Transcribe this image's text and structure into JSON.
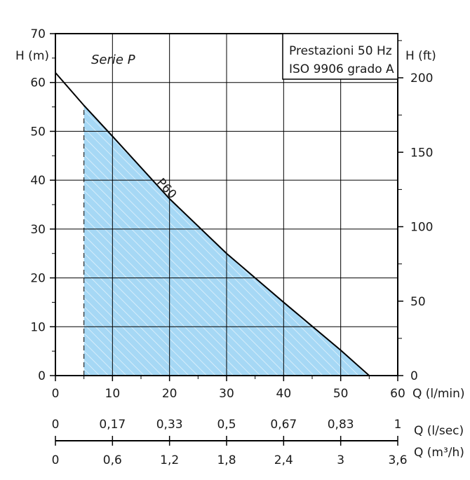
{
  "chart_data": {
    "type": "area",
    "title": "",
    "series_label": "Serie P",
    "note_lines": [
      "Prestazioni 50 Hz",
      "ISO 9906 grado A"
    ],
    "left_axis_label": "H (m)",
    "right_axis_label": "H (ft)",
    "x_label": "Q (l/min)",
    "x_label_lsec": "Q (l/sec)",
    "x_label_m3h": "Q (m³/h)",
    "xlim": [
      0,
      60
    ],
    "ylim": [
      0,
      70
    ],
    "ft_lim": [
      0,
      229.66
    ],
    "x_ticks": [
      "0",
      "10",
      "20",
      "30",
      "40",
      "50",
      "60"
    ],
    "y_ticks": [
      "0",
      "10",
      "20",
      "30",
      "40",
      "50",
      "60",
      "70"
    ],
    "ft_ticks": [
      {
        "value": 0,
        "label": "0"
      },
      {
        "value": 50,
        "label": "50"
      },
      {
        "value": 100,
        "label": "100"
      },
      {
        "value": 150,
        "label": "150"
      },
      {
        "value": 200,
        "label": "200"
      }
    ],
    "lsec_ticks": [
      {
        "q": 0,
        "label": "0"
      },
      {
        "q": 10,
        "label": "0,17"
      },
      {
        "q": 20,
        "label": "0,33"
      },
      {
        "q": 30,
        "label": "0,5"
      },
      {
        "q": 40,
        "label": "0,67"
      },
      {
        "q": 50,
        "label": "0,83"
      },
      {
        "q": 60,
        "label": "1"
      }
    ],
    "m3h_ticks": [
      {
        "q": 0,
        "label": "0"
      },
      {
        "q": 10,
        "label": "0,6"
      },
      {
        "q": 20,
        "label": "1,2"
      },
      {
        "q": 30,
        "label": "1,8"
      },
      {
        "q": 40,
        "label": "2,4"
      },
      {
        "q": 50,
        "label": "3"
      },
      {
        "q": 60,
        "label": "3,6"
      }
    ],
    "series": [
      {
        "name": "P60",
        "x": [
          0,
          5,
          10,
          20,
          30,
          40,
          50,
          55
        ],
        "y": [
          62,
          55.3,
          49,
          36.2,
          25,
          15,
          5.2,
          0
        ]
      }
    ],
    "operating_range": [
      5,
      55
    ],
    "grid": true,
    "colors": {
      "fill": "#a6d8f5",
      "hatch": "#ffffff",
      "line": "#000000",
      "grid": "#000000"
    }
  }
}
